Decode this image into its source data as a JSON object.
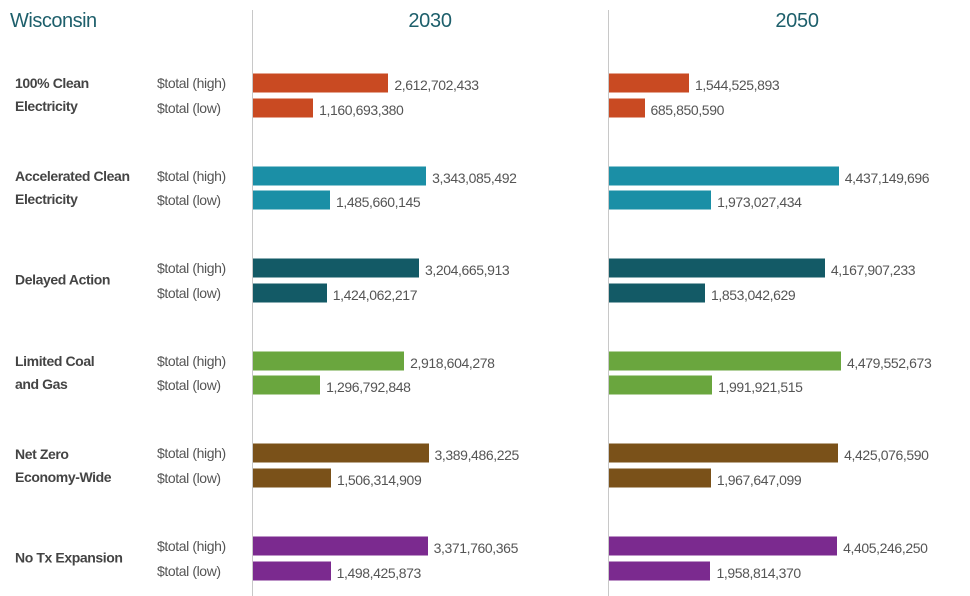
{
  "chart_data": {
    "type": "bar",
    "title": "Wisconsin",
    "categories": [
      "100% Clean\nElectricity",
      "Accelerated Clean\nElectricity",
      "Delayed Action",
      "Limited Coal\nand Gas",
      "Net Zero\nEconomy-Wide",
      "No Tx Expansion"
    ],
    "colors": [
      "#c94a22",
      "#1b8fa6",
      "#135a66",
      "#6aa63e",
      "#7a5119",
      "#7b2a8f"
    ],
    "measures": [
      "$total (high)",
      "$total (low)"
    ],
    "panels": [
      {
        "title": "2030",
        "values": [
          [
            2612702433,
            1160693380
          ],
          [
            3343085492,
            1485660145
          ],
          [
            3204665913,
            1424062217
          ],
          [
            2918604278,
            1296792848
          ],
          [
            3389486225,
            1506314909
          ],
          [
            3371760365,
            1498425873
          ]
        ],
        "value_labels": [
          [
            "2,612,702,433",
            "1,160,693,380"
          ],
          [
            "3,343,085,492",
            "1,485,660,145"
          ],
          [
            "3,204,665,913",
            "1,424,062,217"
          ],
          [
            "2,918,604,278",
            "1,296,792,848"
          ],
          [
            "3,389,486,225",
            "1,506,314,909"
          ],
          [
            "3,371,760,365",
            "1,498,425,873"
          ]
        ]
      },
      {
        "title": "2050",
        "values": [
          [
            1544525893,
            685850590
          ],
          [
            4437149696,
            1973027434
          ],
          [
            4167907233,
            1853042629
          ],
          [
            4479552673,
            1991921515
          ],
          [
            4425076590,
            1967647099
          ],
          [
            4405246250,
            1958814370
          ]
        ],
        "value_labels": [
          [
            "1,544,525,893",
            "685,850,590"
          ],
          [
            "4,437,149,696",
            "1,973,027,434"
          ],
          [
            "4,167,907,233",
            "1,853,042,629"
          ],
          [
            "4,479,552,673",
            "1,991,921,515"
          ],
          [
            "4,425,076,590",
            "1,967,647,099"
          ],
          [
            "4,405,246,250",
            "1,958,814,370"
          ]
        ]
      }
    ]
  }
}
